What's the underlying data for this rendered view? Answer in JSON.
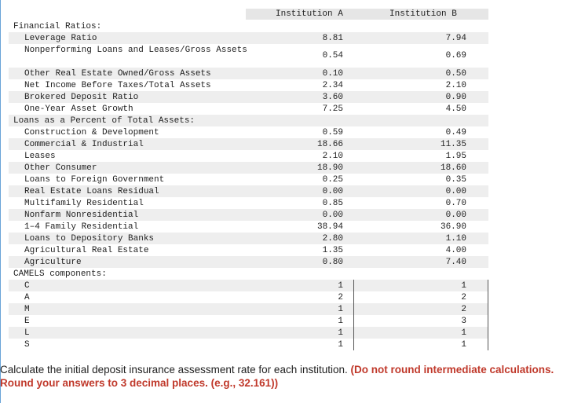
{
  "header": {
    "col_a": "Institution A",
    "col_b": "Institution B"
  },
  "rows": [
    {
      "label": "Financial Ratios:",
      "a": "",
      "b": "",
      "section": true
    },
    {
      "label": "Leverage Ratio",
      "a": "8.81",
      "b": "7.94"
    },
    {
      "label": "Nonperforming Loans and Leases/Gross Assets",
      "a": "0.54",
      "b": "0.69",
      "tall": true
    },
    {
      "label": "Other Real Estate Owned/Gross Assets",
      "a": "0.10",
      "b": "0.50"
    },
    {
      "label": "Net Income Before Taxes/Total Assets",
      "a": "2.34",
      "b": "2.10"
    },
    {
      "label": "Brokered Deposit Ratio",
      "a": "3.60",
      "b": "0.90"
    },
    {
      "label": "One-Year Asset Growth",
      "a": "7.25",
      "b": "4.50"
    },
    {
      "label": "Loans as a Percent of Total Assets:",
      "a": "",
      "b": "",
      "section": true
    },
    {
      "label": "Construction & Development",
      "a": "0.59",
      "b": "0.49"
    },
    {
      "label": "Commercial & Industrial",
      "a": "18.66",
      "b": "11.35"
    },
    {
      "label": "Leases",
      "a": "2.10",
      "b": "1.95"
    },
    {
      "label": "Other Consumer",
      "a": "18.90",
      "b": "18.60"
    },
    {
      "label": "Loans to Foreign Government",
      "a": "0.25",
      "b": "0.35"
    },
    {
      "label": "Real Estate Loans Residual",
      "a": "0.00",
      "b": "0.00"
    },
    {
      "label": "Multifamily Residential",
      "a": "0.85",
      "b": "0.70"
    },
    {
      "label": "Nonfarm Nonresidential",
      "a": "0.00",
      "b": "0.00"
    },
    {
      "label": "1–4 Family Residential",
      "a": "38.94",
      "b": "36.90"
    },
    {
      "label": "Loans to Depository Banks",
      "a": "2.80",
      "b": "1.10"
    },
    {
      "label": "Agricultural Real Estate",
      "a": "1.35",
      "b": "4.00"
    },
    {
      "label": "Agriculture",
      "a": "0.80",
      "b": "7.40"
    },
    {
      "label": "CAMELS components:",
      "a": "",
      "b": "",
      "section": true
    },
    {
      "label": "C",
      "a": "1",
      "b": "1",
      "camels": true
    },
    {
      "label": "A",
      "a": "2",
      "b": "2",
      "camels": true
    },
    {
      "label": "M",
      "a": "1",
      "b": "2",
      "camels": true
    },
    {
      "label": "E",
      "a": "1",
      "b": "3",
      "camels": true
    },
    {
      "label": "L",
      "a": "1",
      "b": "1",
      "camels": true
    },
    {
      "label": "S",
      "a": "1",
      "b": "1",
      "camels": true
    }
  ],
  "question": {
    "text": "Calculate the initial deposit insurance assessment rate for each institution. ",
    "bold": "(Do not round intermediate calculations. Round your answers to 3 decimal places. (e.g., 32.161))"
  }
}
